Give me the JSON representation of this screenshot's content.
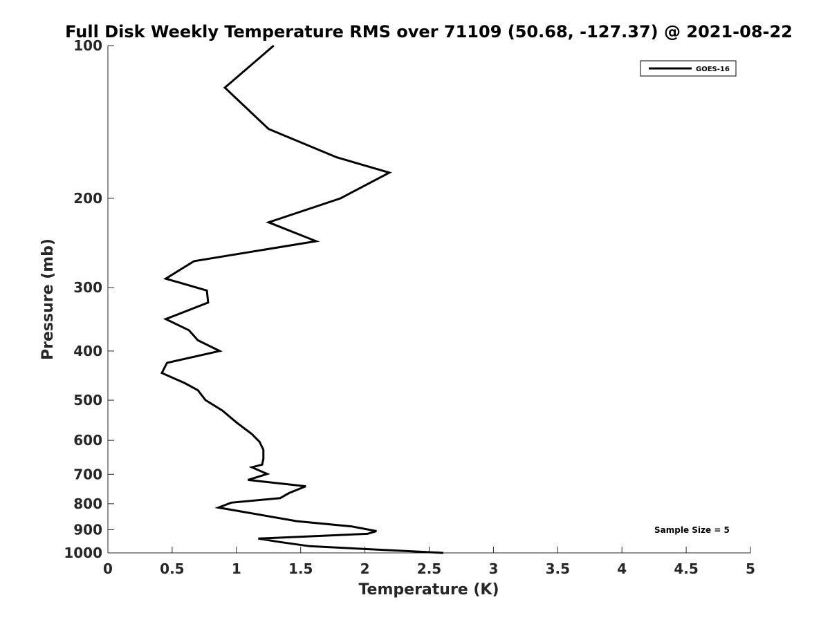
{
  "chart_data": {
    "type": "line",
    "title": "Full Disk Weekly Temperature RMS over 71109 (50.68, -127.37) @ 2021-08-22",
    "xlabel": "Temperature (K)",
    "ylabel": "Pressure (mb)",
    "xlim": [
      0,
      5
    ],
    "ylim": [
      1000,
      100
    ],
    "y_scale": "log",
    "y_reversed": true,
    "grid": false,
    "legend_position": "top-right",
    "x_ticks": [
      0,
      0.5,
      1,
      1.5,
      2,
      2.5,
      3,
      3.5,
      4,
      4.5,
      5
    ],
    "x_tick_labels": [
      "0",
      "0.5",
      "1",
      "1.5",
      "2",
      "2.5",
      "3",
      "3.5",
      "4",
      "4.5",
      "5"
    ],
    "y_ticks": [
      100,
      200,
      300,
      400,
      500,
      600,
      700,
      800,
      900,
      1000
    ],
    "y_tick_labels": [
      "100",
      "200",
      "300",
      "400",
      "500",
      "600",
      "700",
      "800",
      "900",
      "1000"
    ],
    "series": [
      {
        "name": "GOES-16",
        "color": "#000000",
        "points": [
          [
            1.29,
            100
          ],
          [
            0.91,
            121
          ],
          [
            1.25,
            146
          ],
          [
            1.78,
            166
          ],
          [
            2.19,
            178
          ],
          [
            1.81,
            200
          ],
          [
            1.25,
            223
          ],
          [
            1.62,
            243
          ],
          [
            0.67,
            266
          ],
          [
            0.45,
            288
          ],
          [
            0.77,
            304
          ],
          [
            0.78,
            321
          ],
          [
            0.45,
            346
          ],
          [
            0.63,
            364
          ],
          [
            0.7,
            381
          ],
          [
            0.87,
            400
          ],
          [
            0.46,
            422
          ],
          [
            0.42,
            442
          ],
          [
            0.6,
            463
          ],
          [
            0.7,
            478
          ],
          [
            0.76,
            500
          ],
          [
            0.89,
            524
          ],
          [
            1.0,
            553
          ],
          [
            1.12,
            583
          ],
          [
            1.18,
            604
          ],
          [
            1.21,
            626
          ],
          [
            1.21,
            652
          ],
          [
            1.2,
            670
          ],
          [
            1.12,
            678
          ],
          [
            1.24,
            699
          ],
          [
            1.09,
            718
          ],
          [
            1.54,
            739
          ],
          [
            1.41,
            762
          ],
          [
            1.34,
            780
          ],
          [
            0.96,
            796
          ],
          [
            0.86,
            814
          ],
          [
            1.47,
            866
          ],
          [
            1.9,
            887
          ],
          [
            2.09,
            906
          ],
          [
            2.02,
            917
          ],
          [
            1.17,
            937
          ],
          [
            1.34,
            952
          ],
          [
            1.57,
            970
          ],
          [
            2.61,
            1000
          ]
        ]
      }
    ],
    "annotations": [
      "Sample Size = 5"
    ]
  }
}
